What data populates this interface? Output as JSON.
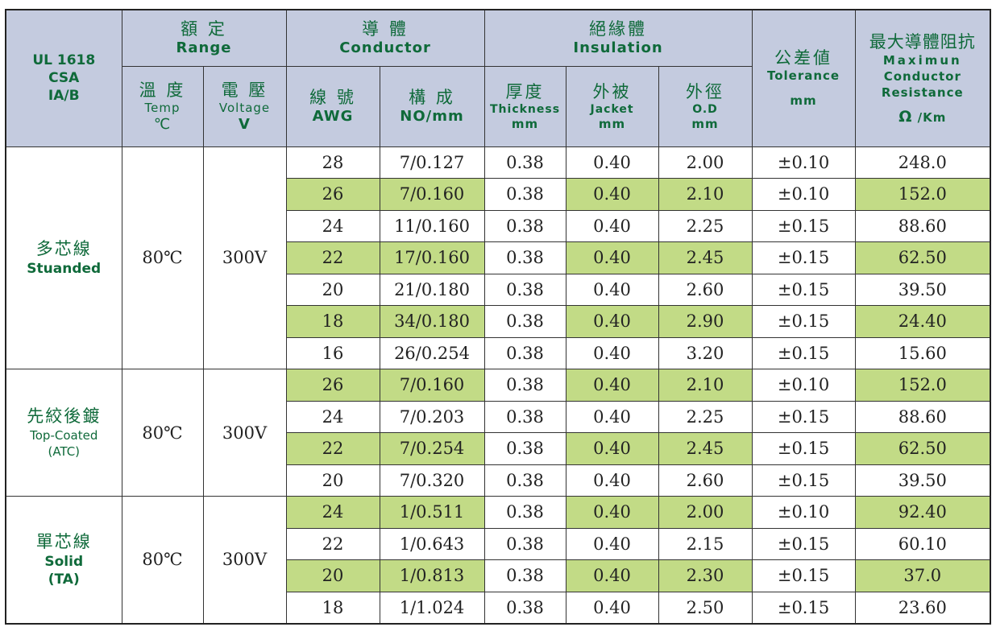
{
  "header": {
    "standard": [
      "UL 1618",
      "CSA",
      "IA/B"
    ],
    "range": {
      "zh": "額 定",
      "en": "Range"
    },
    "temp": {
      "zh": "溫 度",
      "en": "Temp",
      "unit": "℃"
    },
    "voltage": {
      "zh": "電 壓",
      "en": "Voltage",
      "unit": "V"
    },
    "conductor": {
      "zh": "導 體",
      "en": "Conductor"
    },
    "awg": {
      "zh": "線 號",
      "en": "AWG"
    },
    "construction": {
      "zh": "構 成",
      "en": "NO/mm"
    },
    "insulation": {
      "zh": "絕緣體",
      "en": "Insulation"
    },
    "thickness": {
      "zh": "厚度",
      "en": "Thickness",
      "unit": "mm"
    },
    "jacket": {
      "zh": "外被",
      "en": "Jacket",
      "unit": "mm"
    },
    "od": {
      "zh": "外徑",
      "en": "O.D",
      "unit": "mm"
    },
    "tolerance": {
      "zh": "公差値",
      "en": "Tolerance",
      "unit": "mm"
    },
    "resistance": {
      "zh": "最大導體阻抗",
      "en1": "Maximun",
      "en2": "Conductor",
      "en3": "Resistance",
      "unit_symbol": "Ω",
      "unit_rest": "/Km"
    }
  },
  "groups": [
    {
      "name_zh": "多芯線",
      "name_en": "Stuanded",
      "name_en2": "",
      "temp": "80℃",
      "voltage": "300V",
      "rows": [
        {
          "awg": "28",
          "construction": "7/0.127",
          "thickness": "0.38",
          "jacket": "0.40",
          "od": "2.00",
          "tolerance": "±0.10",
          "resistance": "248.0",
          "highlight": false
        },
        {
          "awg": "26",
          "construction": "7/0.160",
          "thickness": "0.38",
          "jacket": "0.40",
          "od": "2.10",
          "tolerance": "±0.10",
          "resistance": "152.0",
          "highlight": true
        },
        {
          "awg": "24",
          "construction": "11/0.160",
          "thickness": "0.38",
          "jacket": "0.40",
          "od": "2.25",
          "tolerance": "±0.15",
          "resistance": "88.60",
          "highlight": false
        },
        {
          "awg": "22",
          "construction": "17/0.160",
          "thickness": "0.38",
          "jacket": "0.40",
          "od": "2.45",
          "tolerance": "±0.15",
          "resistance": "62.50",
          "highlight": true
        },
        {
          "awg": "20",
          "construction": "21/0.180",
          "thickness": "0.38",
          "jacket": "0.40",
          "od": "2.60",
          "tolerance": "±0.15",
          "resistance": "39.50",
          "highlight": false
        },
        {
          "awg": "18",
          "construction": "34/0.180",
          "thickness": "0.38",
          "jacket": "0.40",
          "od": "2.90",
          "tolerance": "±0.15",
          "resistance": "24.40",
          "highlight": true
        },
        {
          "awg": "16",
          "construction": "26/0.254",
          "thickness": "0.38",
          "jacket": "0.40",
          "od": "3.20",
          "tolerance": "±0.15",
          "resistance": "15.60",
          "highlight": false
        }
      ]
    },
    {
      "name_zh": "先絞後鍍",
      "name_en": "Top-Coated",
      "name_en2": "(ATC)",
      "temp": "80℃",
      "voltage": "300V",
      "rows": [
        {
          "awg": "26",
          "construction": "7/0.160",
          "thickness": "0.38",
          "jacket": "0.40",
          "od": "2.10",
          "tolerance": "±0.10",
          "resistance": "152.0",
          "highlight": true
        },
        {
          "awg": "24",
          "construction": "7/0.203",
          "thickness": "0.38",
          "jacket": "0.40",
          "od": "2.25",
          "tolerance": "±0.15",
          "resistance": "88.60",
          "highlight": false
        },
        {
          "awg": "22",
          "construction": "7/0.254",
          "thickness": "0.38",
          "jacket": "0.40",
          "od": "2.45",
          "tolerance": "±0.15",
          "resistance": "62.50",
          "highlight": true
        },
        {
          "awg": "20",
          "construction": "7/0.320",
          "thickness": "0.38",
          "jacket": "0.40",
          "od": "2.60",
          "tolerance": "±0.15",
          "resistance": "39.50",
          "highlight": false
        }
      ]
    },
    {
      "name_zh": "單芯線",
      "name_en": "Solid",
      "name_en2": "(TA)",
      "temp": "80℃",
      "voltage": "300V",
      "rows": [
        {
          "awg": "24",
          "construction": "1/0.511",
          "thickness": "0.38",
          "jacket": "0.40",
          "od": "2.00",
          "tolerance": "±0.10",
          "resistance": "92.40",
          "highlight": true
        },
        {
          "awg": "22",
          "construction": "1/0.643",
          "thickness": "0.38",
          "jacket": "0.40",
          "od": "2.15",
          "tolerance": "±0.15",
          "resistance": "60.10",
          "highlight": false
        },
        {
          "awg": "20",
          "construction": "1/0.813",
          "thickness": "0.38",
          "jacket": "0.40",
          "od": "2.30",
          "tolerance": "±0.15",
          "resistance": "37.0",
          "highlight": true
        },
        {
          "awg": "18",
          "construction": "1/1.024",
          "thickness": "0.38",
          "jacket": "0.40",
          "od": "2.50",
          "tolerance": "±0.15",
          "resistance": "23.60",
          "highlight": false
        }
      ]
    }
  ],
  "colors": {
    "header_bg": "#c4cbdf",
    "header_text": "#0f6a3a",
    "highlight": "#c2db86",
    "border": "#333333"
  }
}
